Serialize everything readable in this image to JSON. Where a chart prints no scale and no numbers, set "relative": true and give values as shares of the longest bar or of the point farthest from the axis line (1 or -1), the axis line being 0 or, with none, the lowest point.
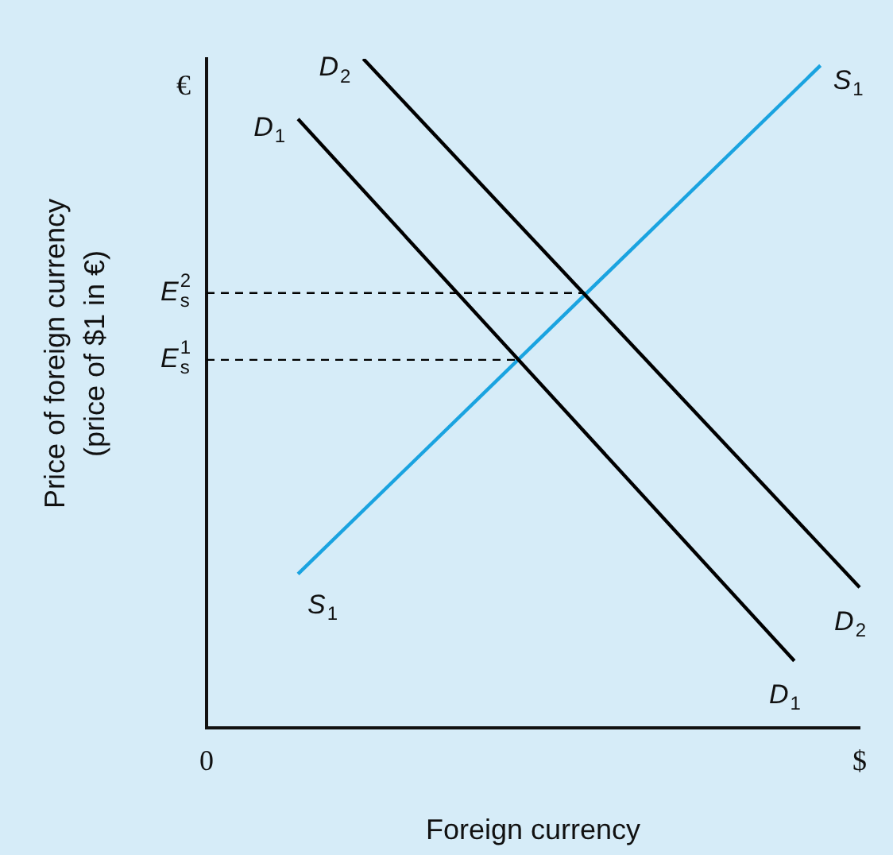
{
  "chart_data": {
    "type": "line",
    "relative": true,
    "xlabel": "Foreign currency",
    "ylabel": "Price of foreign currency\n(price of $1 in €)",
    "annotations": [
      "0",
      "$",
      "€"
    ],
    "categories": [
      null,
      null,
      null,
      null,
      null,
      null,
      null,
      null,
      null,
      null,
      null,
      null,
      null,
      null,
      null,
      null,
      null,
      null,
      null,
      null,
      null,
      null,
      null,
      null,
      null,
      null,
      null,
      null,
      null,
      null,
      null,
      null,
      null,
      null,
      null,
      null,
      null,
      null,
      null,
      null,
      null,
      null,
      null,
      null,
      null,
      null,
      null,
      null,
      null,
      null,
      null
    ],
    "series": [
      {
        "name": "D$_{2}$",
        "color": "#000000",
        "values": [
          null,
          null,
          null,
          null,
          null,
          null,
          null,
          null,
          null,
          null,
          null,
          null,
          1.0,
          null,
          null,
          null,
          null,
          null,
          null,
          null,
          null,
          null,
          null,
          null,
          null,
          null,
          null,
          null,
          null,
          null,
          null,
          null,
          null,
          null,
          null,
          null,
          null,
          null,
          null,
          null,
          null,
          null,
          null,
          null,
          null,
          null,
          null,
          null,
          null,
          null,
          0.21
        ]
      },
      {
        "name": "D$_{1}$",
        "color": "#000000",
        "values": [
          null,
          null,
          null,
          null,
          null,
          null,
          null,
          0.91,
          null,
          null,
          null,
          null,
          null,
          null,
          null,
          null,
          null,
          null,
          null,
          null,
          null,
          null,
          null,
          null,
          null,
          null,
          null,
          null,
          null,
          null,
          null,
          null,
          null,
          null,
          null,
          null,
          null,
          null,
          null,
          null,
          null,
          null,
          null,
          null,
          null,
          0.1,
          null,
          null,
          null,
          null,
          null
        ]
      },
      {
        "name": "S$_{1}$",
        "color": "#1aa3e0",
        "values": [
          null,
          null,
          null,
          null,
          null,
          null,
          null,
          0.23,
          null,
          null,
          null,
          null,
          null,
          null,
          null,
          null,
          null,
          null,
          null,
          null,
          null,
          null,
          null,
          null,
          null,
          null,
          null,
          null,
          null,
          null,
          null,
          null,
          null,
          null,
          null,
          null,
          null,
          null,
          null,
          null,
          null,
          null,
          null,
          null,
          null,
          null,
          null,
          0.99,
          null,
          null,
          null
        ]
      },
      {
        "name": "E$_{s}$$^{2}$",
        "color": "#000000",
        "line_style": "dashed",
        "values": [
          0.65,
          null,
          null,
          null,
          null,
          null,
          null,
          null,
          null,
          null,
          null,
          null,
          null,
          null,
          null,
          null,
          null,
          null,
          null,
          null,
          null,
          null,
          null,
          null,
          null,
          null,
          null,
          null,
          null,
          0.65,
          null,
          null,
          null,
          null,
          null,
          null,
          null,
          null,
          null,
          null,
          null,
          null,
          null,
          null,
          null,
          null,
          null,
          null,
          null,
          null,
          null
        ]
      },
      {
        "name": "E$_{s}$$^{1}$",
        "color": "#000000",
        "line_style": "dashed",
        "values": [
          0.55,
          null,
          null,
          null,
          null,
          null,
          null,
          null,
          null,
          null,
          null,
          null,
          null,
          null,
          null,
          null,
          null,
          null,
          null,
          null,
          null,
          null,
          null,
          null,
          0.55,
          null,
          null,
          null,
          null,
          null,
          null,
          null,
          null,
          null,
          null,
          null,
          null,
          null,
          null,
          null,
          null,
          null,
          null,
          null,
          null,
          null,
          null,
          null,
          null,
          null,
          null
        ]
      }
    ]
  }
}
